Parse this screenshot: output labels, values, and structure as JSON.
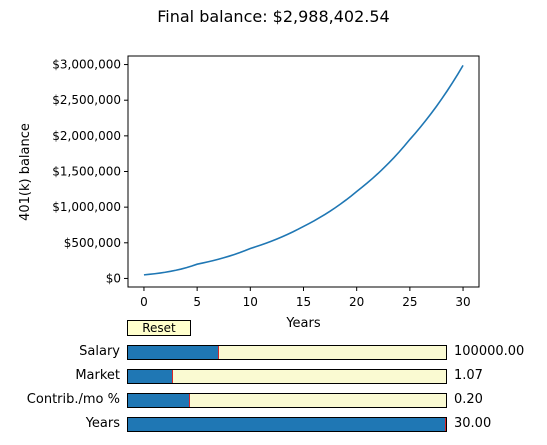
{
  "title": "Final balance: $2,988,402.54",
  "chart_data": {
    "type": "line",
    "title": "Final balance: $2,988,402.54",
    "xlabel": "Years",
    "ylabel": "401(k) balance",
    "xlim": [
      -1.5,
      31.5
    ],
    "ylim": [
      -120000,
      3120000
    ],
    "x_ticks": [
      0,
      5,
      10,
      15,
      20,
      25,
      30
    ],
    "y_ticks": [
      0,
      500000,
      1000000,
      1500000,
      2000000,
      2500000,
      3000000
    ],
    "y_tick_labels": [
      "$0",
      "$500,000",
      "$1,000,000",
      "$1,500,000",
      "$2,000,000",
      "$2,500,000",
      "$3,000,000"
    ],
    "grid": false,
    "series": [
      {
        "color": "#1f77b4",
        "x": [
          0,
          5,
          10,
          15,
          20,
          25,
          30
        ],
        "y": [
          50000,
          200000,
          420000,
          730000,
          1220000,
          1950000,
          2988402.54
        ]
      }
    ]
  },
  "controls": {
    "reset_label": "Reset",
    "sliders": [
      {
        "label": "Salary",
        "value_text": "100000.00",
        "fraction": 0.285
      },
      {
        "label": "Market",
        "value_text": "1.07",
        "fraction": 0.14
      },
      {
        "label": "Contrib./mo %",
        "value_text": "0.20",
        "fraction": 0.195
      },
      {
        "label": "Years",
        "value_text": "30.00",
        "fraction": 1.0
      }
    ]
  },
  "colors": {
    "line": "#1f77b4",
    "slider_fill": "#1f77b4",
    "slider_track": "#fafad2",
    "button_bg": "#ffffcc",
    "slider_handle": "#d62728"
  }
}
